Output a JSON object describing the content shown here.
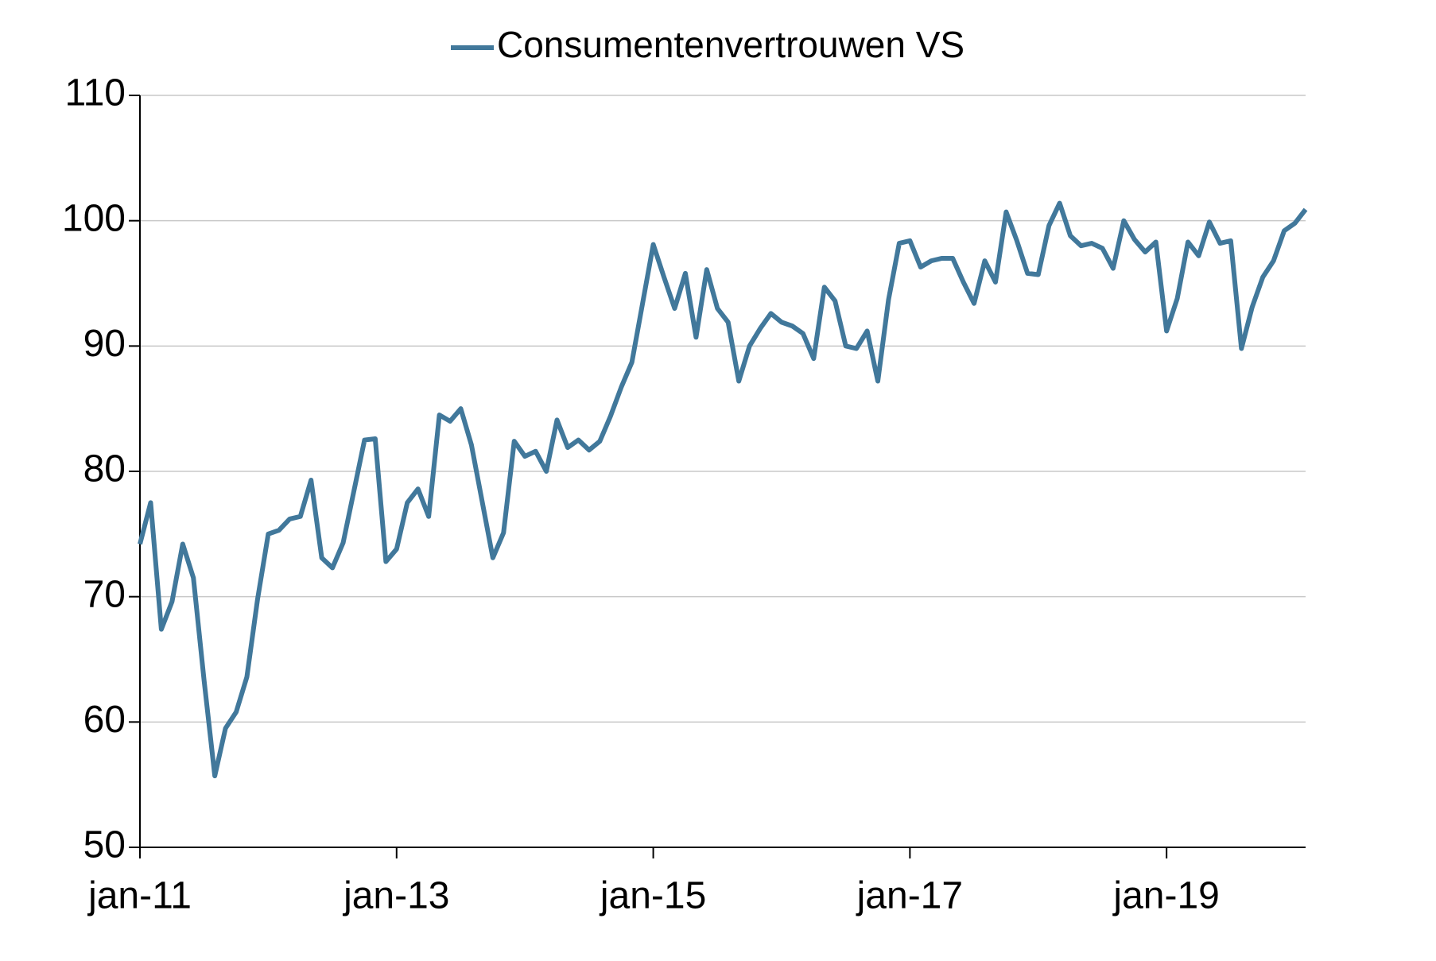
{
  "chart_data": {
    "type": "line",
    "categories": [
      "jan-11",
      null,
      null,
      null,
      null,
      null,
      null,
      null,
      null,
      null,
      null,
      null,
      null,
      null,
      null,
      null,
      null,
      null,
      null,
      null,
      null,
      null,
      null,
      null,
      "jan-13",
      null,
      null,
      null,
      null,
      null,
      null,
      null,
      null,
      null,
      null,
      null,
      null,
      null,
      null,
      null,
      null,
      null,
      null,
      null,
      null,
      null,
      null,
      null,
      "jan-15",
      null,
      null,
      null,
      null,
      null,
      null,
      null,
      null,
      null,
      null,
      null,
      null,
      null,
      null,
      null,
      null,
      null,
      null,
      null,
      null,
      null,
      null,
      null,
      "jan-17",
      null,
      null,
      null,
      null,
      null,
      null,
      null,
      null,
      null,
      null,
      null,
      null,
      null,
      null,
      null,
      null,
      null,
      null,
      null,
      null,
      null,
      null,
      null,
      "jan-19",
      null,
      null,
      null,
      null,
      null,
      null,
      null,
      null,
      null,
      null,
      null,
      null,
      null
    ],
    "series": [
      {
        "name": "Consumentenvertrouwen VS",
        "color": "#41789b",
        "values": [
          74.2,
          77.5,
          67.4,
          69.6,
          74.2,
          71.5,
          63.3,
          55.7,
          59.5,
          60.8,
          63.6,
          69.8,
          75.0,
          75.3,
          76.2,
          76.4,
          79.3,
          73.1,
          72.3,
          74.3,
          78.4,
          82.5,
          82.6,
          72.8,
          73.8,
          77.5,
          78.6,
          76.4,
          84.5,
          84.0,
          85.0,
          82.1,
          77.6,
          73.1,
          75.1,
          82.4,
          81.2,
          81.6,
          80.0,
          84.1,
          81.9,
          82.5,
          81.7,
          82.4,
          84.4,
          86.7,
          88.7,
          93.4,
          98.1,
          95.5,
          93.0,
          95.8,
          90.7,
          96.1,
          93.0,
          91.9,
          87.2,
          90.0,
          91.4,
          92.6,
          91.9,
          91.6,
          91.0,
          89.0,
          94.7,
          93.6,
          90.0,
          89.8,
          91.2,
          87.2,
          93.7,
          98.2,
          98.4,
          96.3,
          96.8,
          97.0,
          97.0,
          95.1,
          93.4,
          96.8,
          95.1,
          100.7,
          98.4,
          95.8,
          95.7,
          99.6,
          101.4,
          98.8,
          98.0,
          98.2,
          97.8,
          96.2,
          100.0,
          98.5,
          97.5,
          98.3,
          91.2,
          93.8,
          98.3,
          97.2,
          99.9,
          98.2,
          98.4,
          89.8,
          93.1,
          95.5,
          96.8,
          99.2,
          99.8,
          100.9
        ]
      }
    ],
    "ylim": [
      50,
      110
    ],
    "yticks": [
      50,
      60,
      70,
      80,
      90,
      100,
      110
    ],
    "grid": true
  }
}
